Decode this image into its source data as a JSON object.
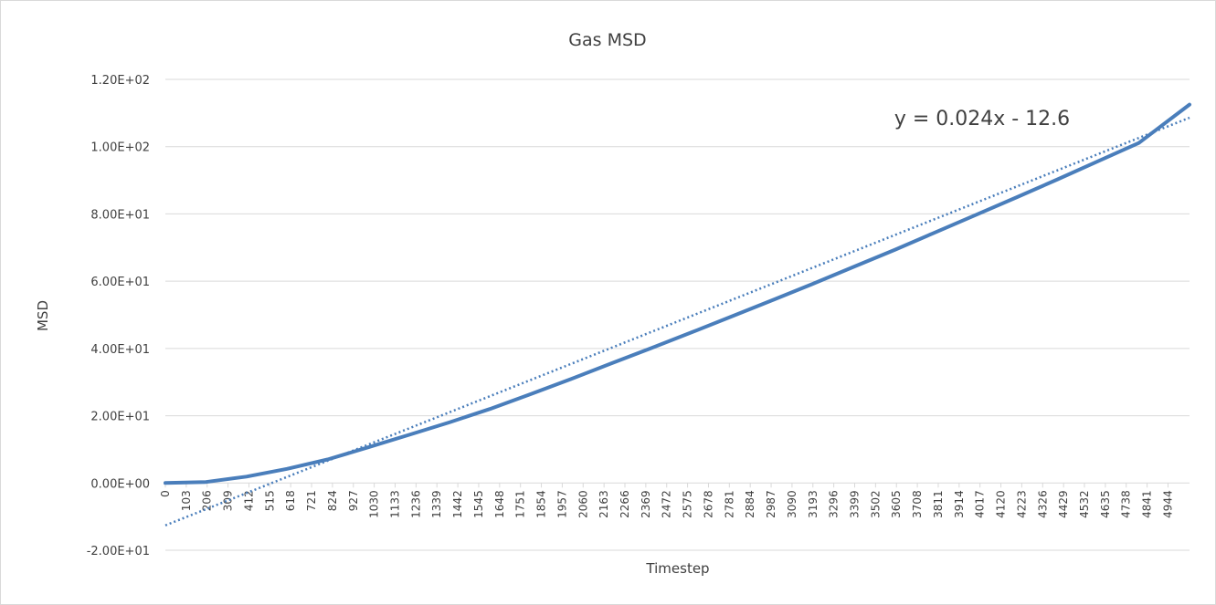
{
  "chart_data": {
    "type": "line",
    "title": "Gas MSD",
    "xlabel": "Timestep",
    "ylabel": "MSD",
    "x_tick_labels": [
      "0",
      "103",
      "206",
      "309",
      "412",
      "515",
      "618",
      "721",
      "824",
      "927",
      "1030",
      "1133",
      "1236",
      "1339",
      "1442",
      "1545",
      "1648",
      "1751",
      "1854",
      "1957",
      "2060",
      "2163",
      "2266",
      "2369",
      "2472",
      "2575",
      "2678",
      "2781",
      "2884",
      "2987",
      "3090",
      "3193",
      "3296",
      "3399",
      "3502",
      "3605",
      "3708",
      "3811",
      "3914",
      "4017",
      "4120",
      "4223",
      "4326",
      "4429",
      "4532",
      "4635",
      "4738",
      "4841",
      "4944"
    ],
    "y_tick_labels": [
      "-2.00E+01",
      "0.00E+00",
      "2.00E+01",
      "4.00E+01",
      "6.00E+01",
      "8.00E+01",
      "1.00E+02",
      "1.20E+02"
    ],
    "ylim": [
      -20,
      120
    ],
    "xlim": [
      0,
      5050
    ],
    "grid": true,
    "legend": "none",
    "series": [
      {
        "color": "#4a7ebb",
        "style": "solid",
        "x": [
          0,
          200,
          400,
          600,
          800,
          1000,
          1200,
          1400,
          1600,
          1800,
          2000,
          2200,
          2400,
          2600,
          2800,
          3000,
          3200,
          3400,
          3600,
          3800,
          4000,
          4200,
          4400,
          4600,
          4800,
          5050
        ],
        "y": [
          0.0,
          0.3,
          1.9,
          4.2,
          7.0,
          10.6,
          14.3,
          18.0,
          22.0,
          26.4,
          30.9,
          35.6,
          40.2,
          44.9,
          49.7,
          54.5,
          59.4,
          64.4,
          69.4,
          74.6,
          79.8,
          85.0,
          90.3,
          95.7,
          101.1,
          112.5
        ]
      }
    ],
    "trendline": {
      "type": "linear",
      "color": "#4a7ebb",
      "style": "dotted",
      "slope": 0.024,
      "intercept": -12.6,
      "equation_label": "y = 0.024x - 12.6"
    }
  }
}
